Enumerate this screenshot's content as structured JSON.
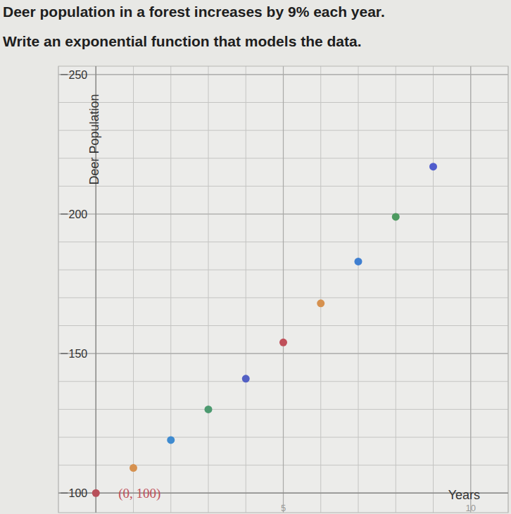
{
  "chart_data": {
    "type": "scatter",
    "title": "Deer population in a forest increases by 9% each year.",
    "subtitle": "Write an exponential function that models the data.",
    "x_label": "Years",
    "y_label": "Deer Population",
    "x": [
      0,
      1,
      2,
      3,
      4,
      5,
      6,
      7,
      8,
      9
    ],
    "values": [
      100,
      109,
      119,
      130,
      141,
      154,
      168,
      183,
      199,
      217
    ],
    "colors": [
      "#b8505a",
      "#d6914f",
      "#3f8bd0",
      "#4d9a70",
      "#5360c4",
      "#c0505a",
      "#d6914f",
      "#3f7fd0",
      "#4d9a60",
      "#4f5ccc"
    ],
    "xlim": [
      -1,
      11
    ],
    "ylim": [
      93,
      253
    ],
    "xticks": [
      5,
      10
    ],
    "yticks": [
      100,
      150,
      200,
      250
    ],
    "grid": true,
    "marker": "circle",
    "annotations": [
      {
        "text": "(0, 100)",
        "x": 0,
        "y": 100
      }
    ]
  }
}
